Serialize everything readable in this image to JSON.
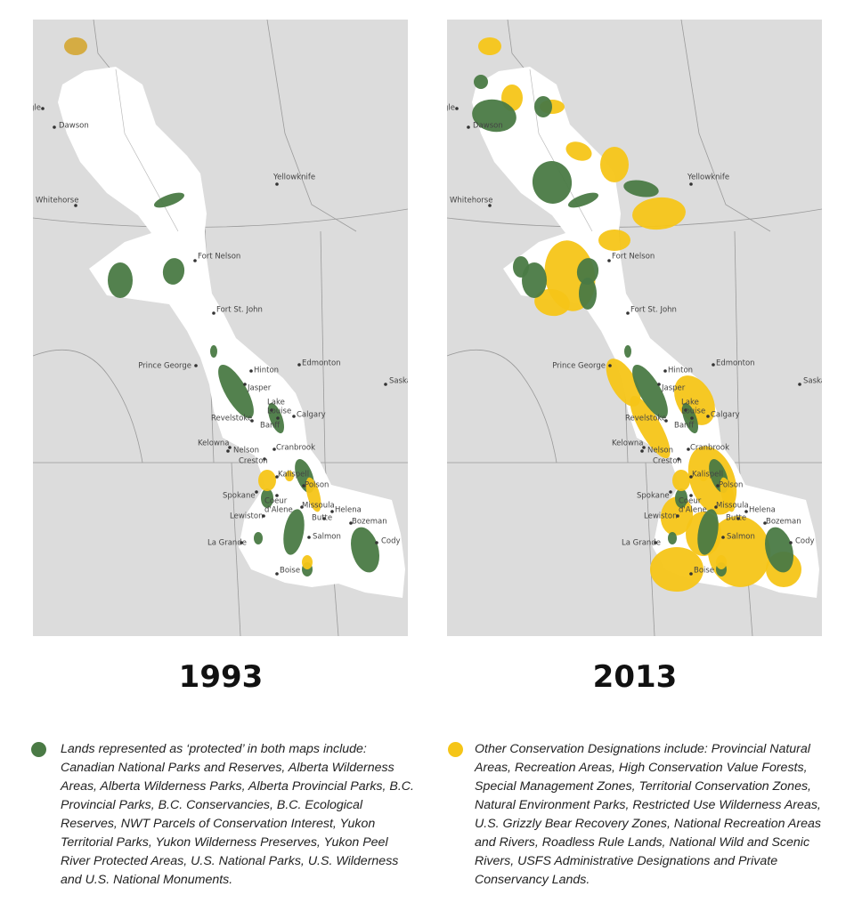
{
  "maps": [
    {
      "year": "1993",
      "places": [
        [
          "gle"
        ],
        [
          "Dawson"
        ],
        [
          "Whitehorse"
        ],
        [
          "Yellowknife"
        ],
        [
          "Fort Nelson"
        ],
        [
          "Fort St. John"
        ],
        [
          "Prince George"
        ],
        [
          "Hinton"
        ],
        [
          "Edmonton"
        ],
        [
          "Saskat"
        ],
        [
          "Jasper"
        ],
        [
          "Lake",
          "Louise"
        ],
        [
          "Banff"
        ],
        [
          "Calgary"
        ],
        [
          "Revelstoke"
        ],
        [
          "Kelowna"
        ],
        [
          "Nelson"
        ],
        [
          "Cranbrook"
        ],
        [
          "Creston"
        ],
        [
          "Kalispell"
        ],
        [
          "Polson"
        ],
        [
          "Spokane"
        ],
        [
          "Coeur",
          "d'Alene"
        ],
        [
          "Missoula"
        ],
        [
          "Lewiston"
        ],
        [
          "Helena"
        ],
        [
          "Bozeman"
        ],
        [
          "Butte"
        ],
        [
          "Salmon"
        ],
        [
          "Cody"
        ],
        [
          "La Grande"
        ],
        [
          "Boise"
        ]
      ]
    },
    {
      "year": "2013",
      "places": [
        [
          "gle"
        ],
        [
          "Dawson"
        ],
        [
          "Whitehorse"
        ],
        [
          "Yellowknife"
        ],
        [
          "Fort Nelson"
        ],
        [
          "Fort St. John"
        ],
        [
          "Prince George"
        ],
        [
          "Hinton"
        ],
        [
          "Edmonton"
        ],
        [
          "Saskat"
        ],
        [
          "Jasper"
        ],
        [
          "Lake",
          "Louise"
        ],
        [
          "Banff"
        ],
        [
          "Calgary"
        ],
        [
          "Revelstoke"
        ],
        [
          "Kelowna"
        ],
        [
          "Nelson"
        ],
        [
          "Cranbrook"
        ],
        [
          "Creston"
        ],
        [
          "Kalispell"
        ],
        [
          "Polson"
        ],
        [
          "Spokane"
        ],
        [
          "Coeur",
          "d'Alene"
        ],
        [
          "Missoula"
        ],
        [
          "Lewiston"
        ],
        [
          "Helena"
        ],
        [
          "Bozeman"
        ],
        [
          "Butte"
        ],
        [
          "Salmon"
        ],
        [
          "Cody"
        ],
        [
          "La Grande"
        ],
        [
          "Boise"
        ]
      ]
    }
  ],
  "legend": [
    {
      "color": "#4a7a45",
      "text": "Lands represented as ‘protected’ in both maps include: Canadian National Parks and Reserves, Alberta Wilderness Areas, Alberta Wilderness Parks, Alberta Provincial Parks, B.C. Provincial Parks, B.C. Conservancies, B.C. Ecological Reserves, NWT Parcels of Conservation Interest, Yukon Territorial Parks, Yukon Wilderness Preserves, Yukon Peel River Protected Areas, U.S. National Parks, U.S. Wilderness and U.S. National Monuments."
    },
    {
      "color": "#f5c518",
      "text": "Other Conservation Designations include: Provincial Natural Areas, Recreation Areas, High Conservation Value Forests, Special Management Zones, Territorial Conservation Zones, Natural Environment Parks, Restricted Use Wilderness Areas, U.S. Grizzly Bear Recovery Zones, National Recreation Areas and Rivers, Roadless Rule Lands, National Wild and Scenic Rivers, USFS Administrative Designations and Private Conservancy Lands."
    }
  ]
}
